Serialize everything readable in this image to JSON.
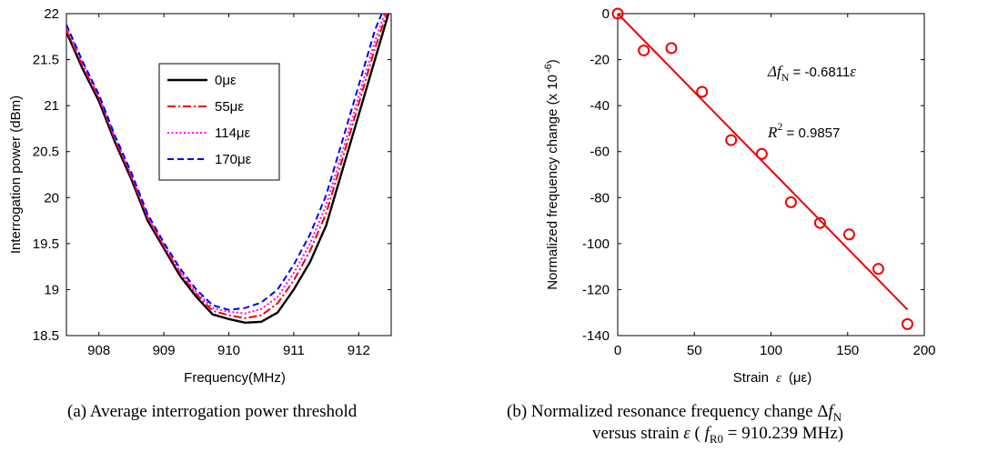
{
  "chart_data": [
    {
      "type": "line",
      "xlabel": "Frequency(MHz)",
      "ylabel": "Interrogation power (dBm)",
      "xlim": [
        907.5,
        912.5
      ],
      "ylim": [
        18.5,
        22
      ],
      "xticks": [
        908,
        909,
        910,
        911,
        912
      ],
      "yticks": [
        18.5,
        19,
        19.5,
        20,
        20.5,
        21,
        21.5,
        22
      ],
      "xtick_labels": [
        "908",
        "909",
        "910",
        "911",
        "912"
      ],
      "ytick_labels": [
        "18.5",
        "19",
        "19.5",
        "20",
        "20.5",
        "21",
        "21.5",
        "22"
      ],
      "grid": false,
      "legend_position": "top-right-of-center",
      "series": [
        {
          "name": "0με",
          "color": "#000000",
          "dash": "solid",
          "x": [
            907.5,
            907.75,
            908.0,
            908.25,
            908.5,
            908.75,
            909.0,
            909.25,
            909.5,
            909.75,
            910.0,
            910.25,
            910.5,
            910.75,
            911.0,
            911.25,
            911.5,
            911.75,
            912.0,
            912.25,
            912.5
          ],
          "y": [
            21.8,
            21.4,
            21.05,
            20.6,
            20.2,
            19.75,
            19.45,
            19.15,
            18.92,
            18.73,
            18.68,
            18.64,
            18.65,
            18.75,
            19.0,
            19.3,
            19.7,
            20.3,
            20.9,
            21.5,
            22.1
          ]
        },
        {
          "name": "55με",
          "color": "#ee0000",
          "dash": "dashdot",
          "x": [
            907.5,
            907.75,
            908.0,
            908.25,
            908.5,
            908.75,
            909.0,
            909.25,
            909.5,
            909.75,
            910.0,
            910.25,
            910.5,
            910.75,
            911.0,
            911.25,
            911.5,
            911.75,
            912.0,
            912.25,
            912.5
          ],
          "y": [
            21.82,
            21.43,
            21.08,
            20.63,
            20.22,
            19.78,
            19.47,
            19.18,
            18.95,
            18.77,
            18.72,
            18.69,
            18.72,
            18.85,
            19.1,
            19.42,
            19.83,
            20.42,
            21.02,
            21.62,
            22.15
          ]
        },
        {
          "name": "114με",
          "color": "#ff00ff",
          "dash": "dotted",
          "x": [
            907.5,
            907.75,
            908.0,
            908.25,
            908.5,
            908.75,
            909.0,
            909.25,
            909.5,
            909.75,
            910.0,
            910.25,
            910.5,
            910.75,
            911.0,
            911.25,
            911.5,
            911.75,
            912.0,
            912.25,
            912.5
          ],
          "y": [
            21.86,
            21.46,
            21.1,
            20.65,
            20.25,
            19.8,
            19.49,
            19.2,
            18.97,
            18.8,
            18.76,
            18.74,
            18.79,
            18.92,
            19.18,
            19.5,
            19.92,
            20.5,
            21.1,
            21.7,
            22.2
          ]
        },
        {
          "name": "170με",
          "color": "#0000ee",
          "dash": "dashed",
          "x": [
            907.5,
            907.75,
            908.0,
            908.25,
            908.5,
            908.75,
            909.0,
            909.25,
            909.5,
            909.75,
            910.0,
            910.25,
            910.5,
            910.75,
            911.0,
            911.25,
            911.5,
            911.75,
            912.0,
            912.25,
            912.5
          ],
          "y": [
            21.88,
            21.48,
            21.12,
            20.67,
            20.27,
            19.82,
            19.51,
            19.23,
            19.0,
            18.83,
            18.78,
            18.8,
            18.86,
            19.0,
            19.27,
            19.6,
            20.03,
            20.62,
            21.22,
            21.82,
            22.25
          ]
        }
      ],
      "caption": "(a) Average interrogation power threshold"
    },
    {
      "type": "scatter",
      "xlabel": "Strain",
      "xlabel_symbol": "ε",
      "xlabel_unit": "(με)",
      "ylabel": "Normalized frequency change (x 10",
      "ylabel_exponent": "-6",
      "ylabel_close": ")",
      "xlim": [
        0,
        200
      ],
      "ylim": [
        -140,
        0
      ],
      "xticks": [
        0,
        50,
        100,
        150,
        200
      ],
      "yticks": [
        0,
        -20,
        -40,
        -60,
        -80,
        -100,
        -120,
        -140
      ],
      "xtick_labels": [
        "0",
        "50",
        "100",
        "150",
        "200"
      ],
      "ytick_labels": [
        "0",
        "-20",
        "-40",
        "-60",
        "-80",
        "-100",
        "-120",
        "-140"
      ],
      "grid": false,
      "marker_color": "#ee0000",
      "x": [
        0,
        17,
        35,
        55,
        74,
        94,
        113,
        132,
        151,
        170,
        189
      ],
      "y": [
        0,
        -16,
        -15,
        -34,
        -55,
        -61,
        -82,
        -91,
        -96,
        -111,
        -135
      ],
      "fit": {
        "color": "#ee0000",
        "x": [
          0,
          189
        ],
        "y": [
          0,
          -128.7
        ]
      },
      "annotations": [
        {
          "id": "equation",
          "parts": [
            "Δ",
            "f",
            "N",
            " = -0.6811",
            "ε"
          ]
        },
        {
          "id": "rsquared",
          "parts": [
            "R",
            "2",
            " = 0.9857"
          ]
        }
      ],
      "caption_line1_prefix": "(b)   Normalized resonance frequency change Δ",
      "caption_line1_var": "f",
      "caption_line1_sub": "N",
      "caption_line2_prefix": "versus strain ",
      "caption_line2_eps": "ε",
      "caption_line2_mid": " ( ",
      "caption_line2_var": "f",
      "caption_line2_sub": "R0",
      "caption_line2_rest": " = 910.239 MHz)"
    }
  ]
}
